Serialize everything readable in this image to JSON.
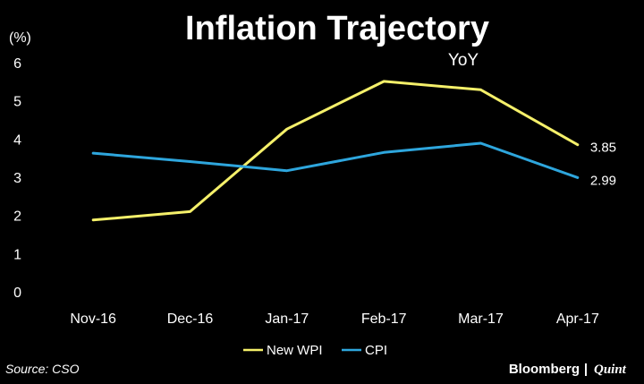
{
  "chart_data": {
    "type": "line",
    "title": "Inflation Trajectory",
    "subtitle": "YoY",
    "ylabel": "(%)",
    "categories": [
      "Nov-16",
      "Dec-16",
      "Jan-17",
      "Feb-17",
      "Mar-17",
      "Apr-17"
    ],
    "ylim": [
      0,
      6
    ],
    "yticks": [
      "0",
      "1",
      "2",
      "3",
      "4",
      "5",
      "6"
    ],
    "grid": false,
    "legend_position": "bottom",
    "series": [
      {
        "name": "New WPI",
        "color": "#f5f06a",
        "values": [
          1.88,
          2.1,
          4.26,
          5.51,
          5.29,
          3.85
        ]
      },
      {
        "name": "CPI",
        "color": "#2ea6dd",
        "values": [
          3.63,
          3.41,
          3.17,
          3.65,
          3.89,
          2.99
        ]
      }
    ],
    "end_labels": [
      "3.85",
      "2.99"
    ]
  },
  "source": "Source: CSO",
  "branding": {
    "left": "Bloomberg",
    "separator": "|",
    "right": "Quint"
  }
}
